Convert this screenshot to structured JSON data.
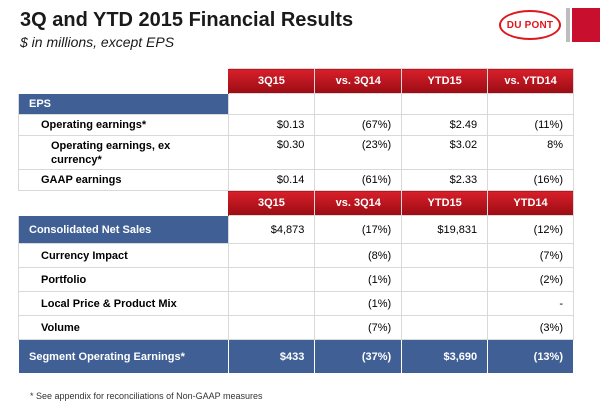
{
  "header": {
    "title": "3Q and YTD 2015 Financial Results",
    "subtitle": "$ in millions, except EPS",
    "logo_text": "DU PONT",
    "accent_red": "#c8102e",
    "section_blue": "#3f5f95"
  },
  "table": {
    "columns": [
      "3Q15",
      "vs. 3Q14",
      "YTD15",
      "vs. YTD14"
    ],
    "eps": {
      "label": "EPS",
      "rows": [
        {
          "label": "Operating earnings*",
          "values": [
            "$0.13",
            "(67%)",
            "$2.49",
            "(11%)"
          ]
        },
        {
          "label": "Operating earnings, ex currency*",
          "values": [
            "$0.30",
            "(23%)",
            "$3.02",
            "8%"
          ]
        },
        {
          "label": "GAAP earnings",
          "values": [
            "$0.14",
            "(61%)",
            "$2.33",
            "(16%)"
          ]
        }
      ]
    },
    "columns2": [
      "3Q15",
      "vs. 3Q14",
      "YTD15",
      "YTD14"
    ],
    "sales": {
      "label": "Consolidated Net Sales",
      "values": [
        "$4,873",
        "(17%)",
        "$19,831",
        "(12%)"
      ],
      "rows": [
        {
          "label": "Currency Impact",
          "values": [
            "",
            "(8%)",
            "",
            "(7%)"
          ]
        },
        {
          "label": "Portfolio",
          "values": [
            "",
            "(1%)",
            "",
            "(2%)"
          ]
        },
        {
          "label": "Local Price & Product Mix",
          "values": [
            "",
            "(1%)",
            "",
            "-"
          ]
        },
        {
          "label": "Volume",
          "values": [
            "",
            "(7%)",
            "",
            "(3%)"
          ]
        }
      ]
    },
    "segment": {
      "label": "Segment Operating Earnings*",
      "values": [
        "$433",
        "(37%)",
        "$3,690",
        "(13%)"
      ]
    }
  },
  "footnote": "*  See appendix for reconciliations of Non-GAAP measures"
}
